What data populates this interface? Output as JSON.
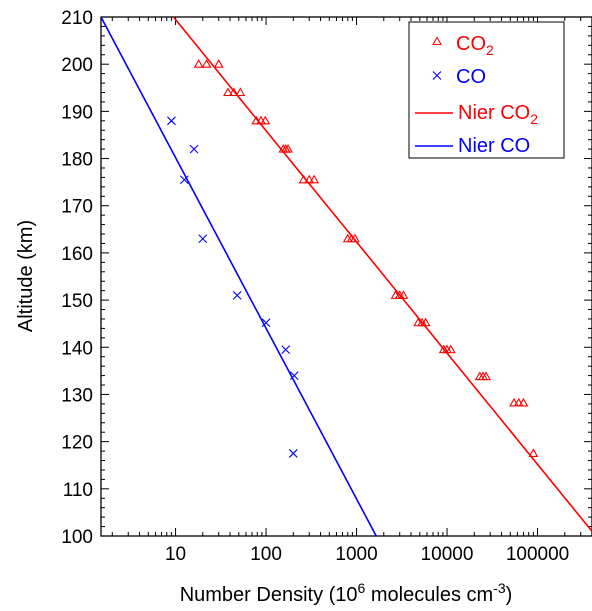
{
  "chart_data": {
    "type": "scatter",
    "xlabel": {
      "main": "Number Density (10",
      "sup": "6",
      "mid": " molecules cm",
      "sup2": "-3",
      "end": ")"
    },
    "ylabel": "Altitude (km)",
    "x_scale": "log",
    "xlim": [
      1.5,
      400000
    ],
    "ylim": [
      100,
      210
    ],
    "x_ticks": [
      {
        "value": 10,
        "label": "10"
      },
      {
        "value": 100,
        "label": "100"
      },
      {
        "value": 1000,
        "label": "1000"
      },
      {
        "value": 10000,
        "label": "10000"
      },
      {
        "value": 100000,
        "label": "100000"
      }
    ],
    "y_ticks": [
      {
        "value": 100,
        "label": "100"
      },
      {
        "value": 110,
        "label": "110"
      },
      {
        "value": 120,
        "label": "120"
      },
      {
        "value": 130,
        "label": "130"
      },
      {
        "value": 140,
        "label": "140"
      },
      {
        "value": 150,
        "label": "150"
      },
      {
        "value": 160,
        "label": "160"
      },
      {
        "value": 170,
        "label": "170"
      },
      {
        "value": 180,
        "label": "180"
      },
      {
        "value": 190,
        "label": "190"
      },
      {
        "value": 200,
        "label": "200"
      },
      {
        "value": 210,
        "label": "210"
      }
    ],
    "grid": false,
    "legend": {
      "position": "top-right"
    },
    "series": [
      {
        "name": {
          "main": "CO",
          "sub": "2"
        },
        "kind": "scatter",
        "marker": "triangle",
        "color": "#ff0000",
        "points": [
          [
            18,
            200
          ],
          [
            22,
            200
          ],
          [
            30,
            200
          ],
          [
            38,
            194
          ],
          [
            44,
            194
          ],
          [
            52,
            194
          ],
          [
            78,
            188
          ],
          [
            88,
            188
          ],
          [
            98,
            188
          ],
          [
            155,
            182
          ],
          [
            165,
            182
          ],
          [
            175,
            182
          ],
          [
            260,
            175.5
          ],
          [
            300,
            175.5
          ],
          [
            340,
            175.5
          ],
          [
            800,
            163
          ],
          [
            880,
            163
          ],
          [
            960,
            163
          ],
          [
            2700,
            151
          ],
          [
            3000,
            151
          ],
          [
            3300,
            151
          ],
          [
            4800,
            145.2
          ],
          [
            5300,
            145.2
          ],
          [
            5800,
            145.2
          ],
          [
            9200,
            139.5
          ],
          [
            10000,
            139.5
          ],
          [
            11000,
            139.5
          ],
          [
            23000,
            133.8
          ],
          [
            25000,
            133.8
          ],
          [
            27000,
            133.8
          ],
          [
            55000,
            128.2
          ],
          [
            62000,
            128.2
          ],
          [
            70000,
            128.2
          ],
          [
            90000,
            117.5
          ]
        ]
      },
      {
        "name": {
          "main": "CO",
          "sub": ""
        },
        "kind": "scatter",
        "marker": "x",
        "color": "#0000ff",
        "points": [
          [
            9,
            188
          ],
          [
            16,
            182
          ],
          [
            12.5,
            175.5
          ],
          [
            20,
            163
          ],
          [
            48,
            151
          ],
          [
            100,
            145.2
          ],
          [
            165,
            139.5
          ],
          [
            205,
            134
          ],
          [
            200,
            117.5
          ]
        ]
      },
      {
        "name": {
          "main": "Nier CO",
          "sub": "2"
        },
        "kind": "line",
        "color": "#ff0000",
        "points": [
          [
            9.5,
            210
          ],
          [
            400000,
            101
          ]
        ]
      },
      {
        "name": {
          "main": "Nier CO",
          "sub": ""
        },
        "kind": "line",
        "color": "#0000ff",
        "points": [
          [
            1.5,
            210
          ],
          [
            1650,
            100
          ]
        ]
      }
    ]
  }
}
